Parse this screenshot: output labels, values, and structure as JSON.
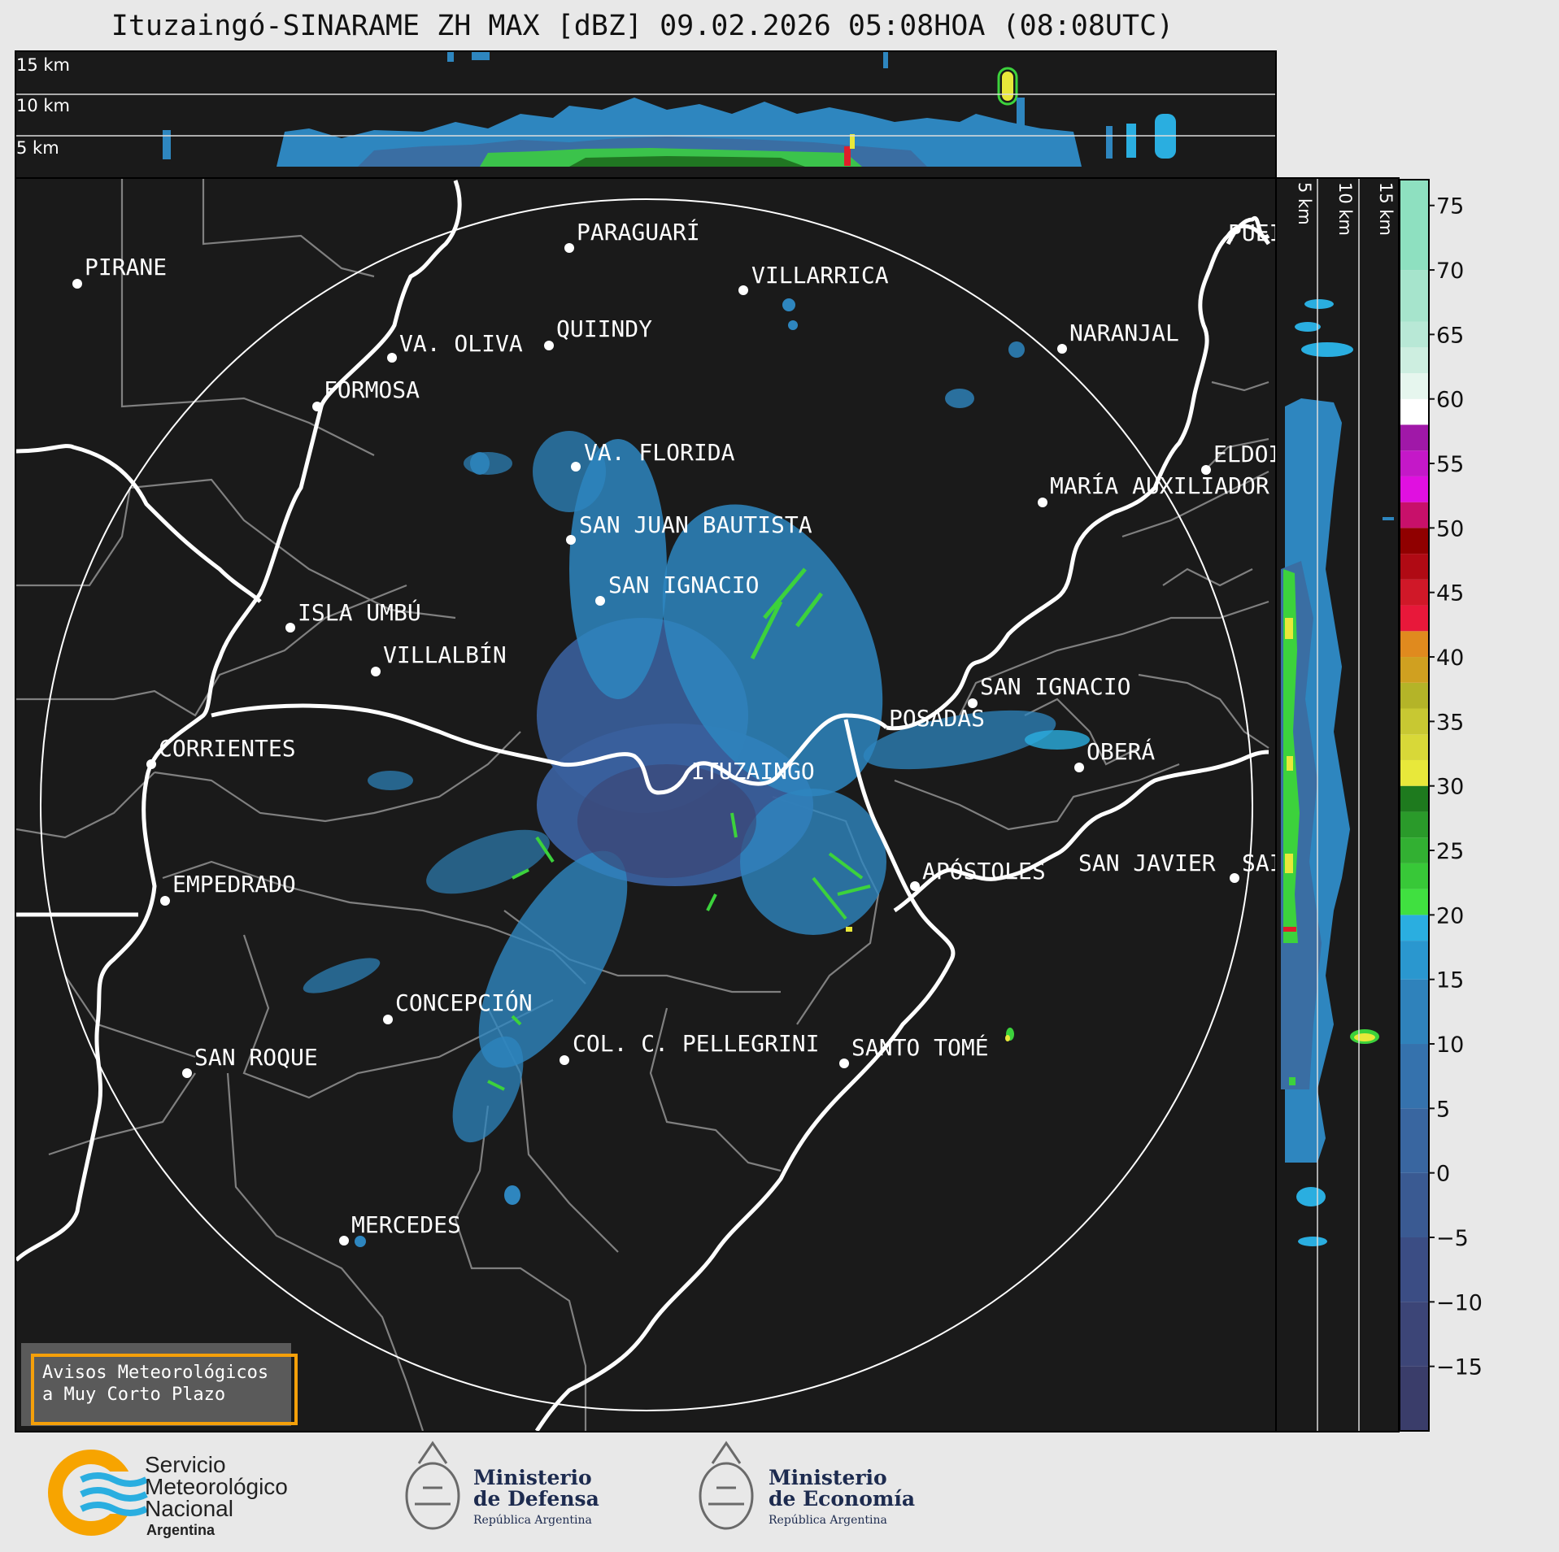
{
  "title": "Ituzaingó-SINARAME ZH MAX [dBZ] 09.02.2026 05:08HOA (08:08UTC)",
  "height_labels_top": [
    "15 km",
    "10 km",
    "5 km"
  ],
  "height_labels_side": [
    "5 km",
    "10 km",
    "15 km"
  ],
  "places": [
    {
      "name": "PARAGUARÍ"
    },
    {
      "name": "VILLARRICA"
    },
    {
      "name": "PIRANE"
    },
    {
      "name": "QUIINDY"
    },
    {
      "name": "VA. OLIVA"
    },
    {
      "name": "NARANJAL"
    },
    {
      "name": "FORMOSA"
    },
    {
      "name": "PUEI"
    },
    {
      "name": "VA. FLORIDA"
    },
    {
      "name": "ELDOI"
    },
    {
      "name": "MARÍA AUXILIADOR"
    },
    {
      "name": "SAN JUAN BAUTISTA"
    },
    {
      "name": "SAN IGNACIO"
    },
    {
      "name": "ISLA UMBÚ"
    },
    {
      "name": "VILLALBÍN"
    },
    {
      "name": "SAN IGNACIO"
    },
    {
      "name": "POSADAS"
    },
    {
      "name": "CORRIENTES"
    },
    {
      "name": "OBERÁ"
    },
    {
      "name": "ITUZAINGO"
    },
    {
      "name": "APÓSTOLES"
    },
    {
      "name": "SAN JAVIER"
    },
    {
      "name": "SAI"
    },
    {
      "name": "EMPEDRADO"
    },
    {
      "name": "CONCEPCIÓN"
    },
    {
      "name": "COL. C. PELLEGRINI"
    },
    {
      "name": "SANTO TOMÉ"
    },
    {
      "name": "SAN ROQUE"
    },
    {
      "name": "MERCEDES"
    }
  ],
  "colorbar": {
    "ticks": [
      "75",
      "70",
      "65",
      "60",
      "55",
      "50",
      "45",
      "40",
      "35",
      "30",
      "25",
      "20",
      "15",
      "10",
      "5",
      "0",
      "−5",
      "−10",
      "−15"
    ],
    "range": [
      -20,
      77
    ],
    "colors": {
      "low": "#3c3f6e",
      "blue_low": "#3a6ea3",
      "blue": "#2a8fc7",
      "cyan": "#2aaee0",
      "green": "#3cd23c",
      "dark_green": "#1e6e1e",
      "yellow": "#e8e83a",
      "olive": "#b4b428",
      "orange": "#e08a1e",
      "red": "#e01e2a",
      "dark_red": "#900000",
      "magenta": "#e81ee8",
      "purple": "#8c1e8c",
      "white": "#ffffff",
      "mint": "#8ee0c0"
    }
  },
  "warning": {
    "line1": "Avisos Meteorológicos",
    "line2": "a Muy Corto Plazo"
  },
  "logos": {
    "smn": {
      "line1": "Servicio",
      "line2": "Meteorológico",
      "line3": "Nacional",
      "line4": "Argentina"
    },
    "defensa": {
      "line1": "Ministerio",
      "line2": "de Defensa",
      "line3": "República Argentina"
    },
    "economia": {
      "line1": "Ministerio",
      "line2": "de Economía",
      "line3": "República Argentina"
    }
  }
}
